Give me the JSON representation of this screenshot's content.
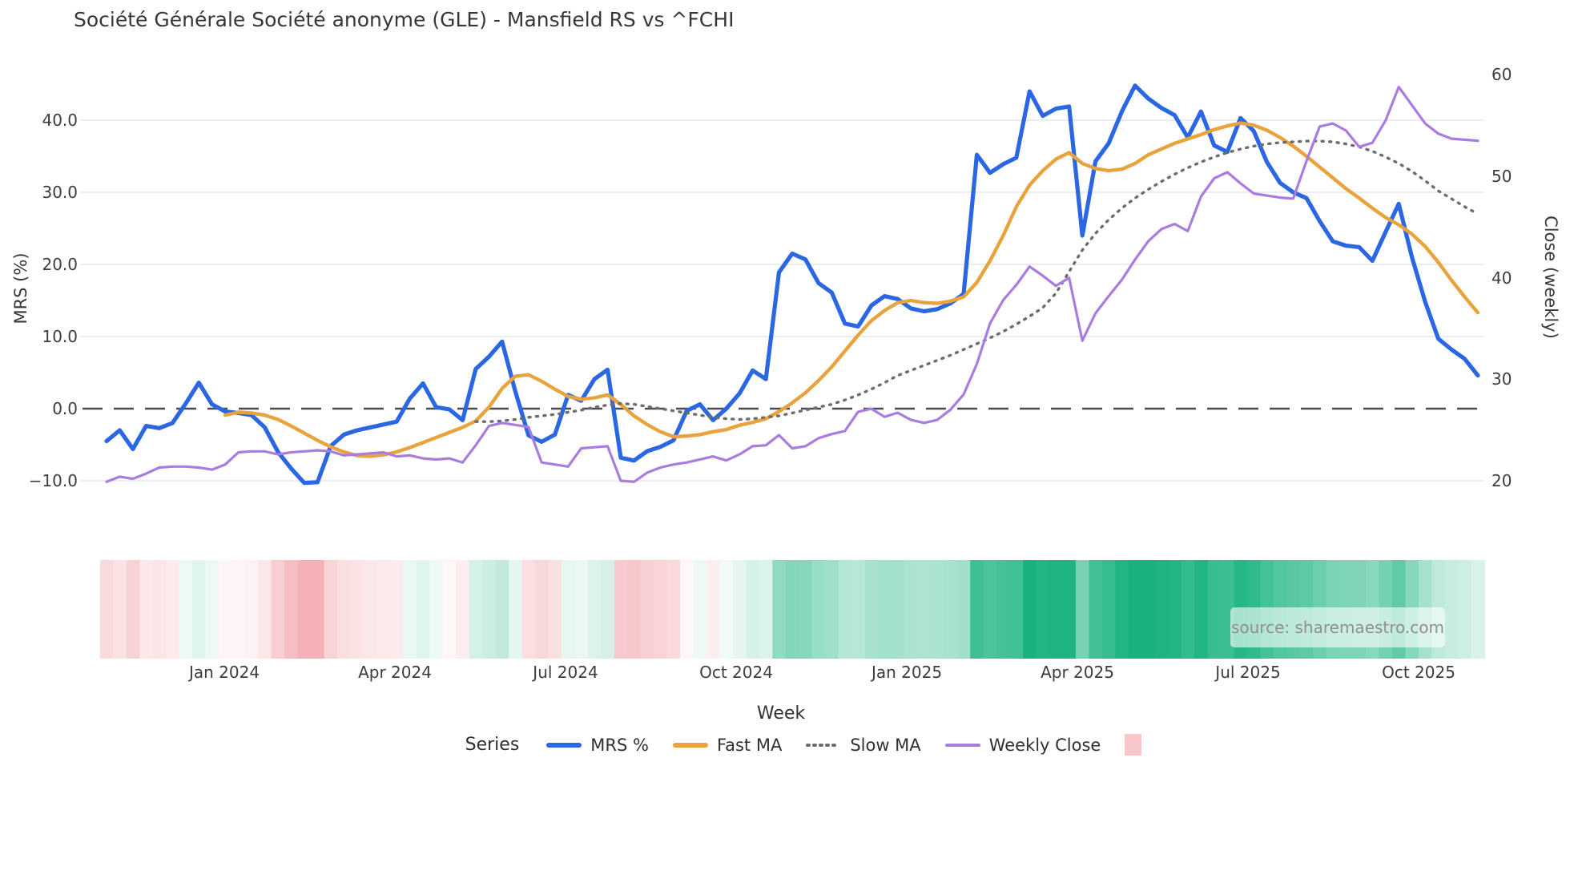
{
  "title": "Société Générale Société anonyme (GLE) - Mansfield RS vs ^FCHI",
  "watermark": {
    "text": "source: sharemaestro.com"
  },
  "legend": {
    "title": "Series",
    "items": [
      {
        "label": "MRS %",
        "swatch": "line",
        "color": "#2b66e3"
      },
      {
        "label": "Fast MA",
        "swatch": "line",
        "color": "#e8a33c"
      },
      {
        "label": "Slow MA",
        "swatch": "dotted-line",
        "color": "#6d6d6d"
      },
      {
        "label": "Weekly Close",
        "swatch": "thin-line",
        "color": "#a97ce0"
      },
      {
        "label": "",
        "swatch": "square",
        "color": "#f9c6ca"
      }
    ]
  },
  "chart_data": {
    "type": "line",
    "title": "Société Générale Société anonyme (GLE) - Mansfield RS vs ^FCHI",
    "xlabel": "Week",
    "ylabel_left": "MRS (%)",
    "ylabel_right": "Close (weekly)",
    "grid": "horizontal-light",
    "zero_line": {
      "value": 0.0,
      "axis": "left",
      "style": "dashed",
      "color": "#4a4a55"
    },
    "left_axis": {
      "tick_labels": [
        "40.0",
        "30.0",
        "20.0",
        "10.0",
        "0.0",
        "−10.0"
      ],
      "tick_values": [
        40,
        30,
        20,
        10,
        0,
        -10
      ],
      "range_hint": [
        -13,
        47
      ]
    },
    "right_axis": {
      "tick_labels": [
        "60",
        "50",
        "40",
        "30",
        "20"
      ],
      "tick_values": [
        60,
        50,
        40,
        30,
        20
      ],
      "range_hint": [
        16,
        61
      ]
    },
    "x_tick_labels": [
      "Jan 2024",
      "Apr 2024",
      "Jul 2024",
      "Oct 2024",
      "Jan 2025",
      "Apr 2025",
      "Jul 2025",
      "Oct 2025"
    ],
    "x_unit": "weekly points, ~Nov 2023 to ~Nov 2025",
    "n_points": 105,
    "heat_band": {
      "source_series": "MRS %",
      "negative_color": "#f4b2b8",
      "positive_color": "#17b27e",
      "description": "weekly strip below chart colored red for negative MRS, green for positive"
    },
    "series": [
      {
        "name": "MRS %",
        "axis": "left",
        "style": "solid",
        "color": "#2b66e3",
        "width": 5.2,
        "values": [
          -4.5,
          -3.0,
          -5.6,
          -2.4,
          -2.7,
          -2.0,
          0.7,
          3.6,
          0.6,
          -0.4,
          -0.6,
          -0.9,
          -2.6,
          -6.0,
          -8.3,
          -10.3,
          -10.2,
          -5.2,
          -3.6,
          -3.0,
          -2.6,
          -2.2,
          -1.8,
          1.4,
          3.5,
          0.2,
          -0.1,
          -1.6,
          5.5,
          7.2,
          9.3,
          2.4,
          -3.7,
          -4.6,
          -3.6,
          1.9,
          1.1,
          4.1,
          5.4,
          -6.8,
          -7.2,
          -5.9,
          -5.3,
          -4.4,
          -0.3,
          0.6,
          -1.6,
          0.0,
          2.1,
          5.3,
          4.1,
          18.9,
          21.5,
          20.7,
          17.4,
          16.1,
          11.8,
          11.4,
          14.3,
          15.6,
          15.2,
          13.9,
          13.5,
          13.8,
          14.6,
          15.9,
          35.2,
          32.7,
          33.9,
          34.8,
          44.0,
          40.6,
          41.6,
          41.9,
          24.0,
          34.3,
          36.8,
          41.2,
          44.8,
          43.0,
          41.7,
          40.7,
          37.6,
          41.2,
          36.5,
          35.6,
          40.3,
          38.5,
          34.2,
          31.3,
          30.0,
          29.2,
          26.0,
          23.2,
          22.6,
          22.4,
          20.5,
          24.5,
          28.4,
          21.0,
          14.8,
          9.7,
          8.2,
          6.9,
          4.6
        ]
      },
      {
        "name": "Fast MA",
        "axis": "left",
        "style": "solid",
        "color": "#e8a33c",
        "width": 4.4,
        "values": [
          null,
          null,
          null,
          null,
          null,
          null,
          null,
          null,
          null,
          -0.9,
          -0.5,
          -0.6,
          -0.9,
          -1.5,
          -2.4,
          -3.4,
          -4.4,
          -5.3,
          -6.0,
          -6.5,
          -6.6,
          -6.4,
          -6.0,
          -5.4,
          -4.7,
          -4.0,
          -3.3,
          -2.6,
          -1.7,
          0.2,
          2.8,
          4.5,
          4.7,
          3.8,
          2.7,
          1.7,
          1.3,
          1.5,
          1.9,
          0.6,
          -1.0,
          -2.2,
          -3.2,
          -3.9,
          -3.8,
          -3.6,
          -3.2,
          -2.9,
          -2.3,
          -1.9,
          -1.4,
          -0.4,
          0.8,
          2.2,
          3.9,
          5.8,
          8.0,
          10.2,
          12.2,
          13.6,
          14.7,
          15.0,
          14.7,
          14.6,
          14.9,
          15.5,
          17.5,
          20.5,
          24.0,
          28.0,
          31.0,
          33.0,
          34.6,
          35.5,
          34.0,
          33.3,
          33.0,
          33.2,
          34.0,
          35.2,
          36.0,
          36.8,
          37.4,
          38.0,
          38.7,
          39.2,
          39.6,
          39.3,
          38.6,
          37.6,
          36.4,
          35.0,
          33.5,
          32.0,
          30.5,
          29.2,
          27.8,
          26.5,
          25.5,
          24.2,
          22.5,
          20.3,
          17.8,
          15.5,
          13.3
        ]
      },
      {
        "name": "Slow MA",
        "axis": "left",
        "style": "dotted",
        "color": "#6d6d6d",
        "width": 3.4,
        "values": [
          null,
          null,
          null,
          null,
          null,
          null,
          null,
          null,
          null,
          null,
          null,
          null,
          null,
          null,
          null,
          null,
          null,
          null,
          null,
          null,
          null,
          null,
          null,
          null,
          null,
          null,
          null,
          null,
          -1.8,
          -1.8,
          -1.7,
          -1.5,
          -1.2,
          -1.0,
          -0.8,
          -0.5,
          -0.2,
          0.2,
          0.5,
          0.7,
          0.6,
          0.3,
          0.0,
          -0.3,
          -0.6,
          -0.9,
          -1.2,
          -1.4,
          -1.5,
          -1.4,
          -1.2,
          -1.0,
          -0.6,
          -0.2,
          0.2,
          0.6,
          1.2,
          1.9,
          2.7,
          3.6,
          4.6,
          5.3,
          6.0,
          6.7,
          7.4,
          8.2,
          9.0,
          9.8,
          10.7,
          11.7,
          12.8,
          14.0,
          16.0,
          19.0,
          22.0,
          24.3,
          26.2,
          27.8,
          29.2,
          30.4,
          31.5,
          32.5,
          33.4,
          34.2,
          34.9,
          35.5,
          36.0,
          36.4,
          36.7,
          36.9,
          37.0,
          37.1,
          37.1,
          37.0,
          36.7,
          36.3,
          35.7,
          34.9,
          34.0,
          32.9,
          31.6,
          30.2,
          29.1,
          28.0,
          27.0
        ]
      },
      {
        "name": "Weekly Close",
        "axis": "right",
        "style": "solid",
        "color": "#a97ce0",
        "width": 3.2,
        "values": [
          19.9,
          20.4,
          20.2,
          20.7,
          21.3,
          21.4,
          21.4,
          21.3,
          21.1,
          21.6,
          22.8,
          22.9,
          22.9,
          22.6,
          22.8,
          22.9,
          23.0,
          22.9,
          22.5,
          22.6,
          22.7,
          22.8,
          22.4,
          22.5,
          22.2,
          22.1,
          22.2,
          21.8,
          23.5,
          25.4,
          25.7,
          25.5,
          25.3,
          21.8,
          21.6,
          21.4,
          23.2,
          23.3,
          23.4,
          20.0,
          19.9,
          20.8,
          21.3,
          21.6,
          21.8,
          22.1,
          22.4,
          22.0,
          22.6,
          23.4,
          23.5,
          24.5,
          23.2,
          23.4,
          24.2,
          24.6,
          24.9,
          26.8,
          27.1,
          26.3,
          26.7,
          26.0,
          25.7,
          26.0,
          27.0,
          28.5,
          31.5,
          35.5,
          37.8,
          39.3,
          41.1,
          40.2,
          39.2,
          40.0,
          33.8,
          36.5,
          38.2,
          39.8,
          41.8,
          43.6,
          44.8,
          45.3,
          44.6,
          48.0,
          49.8,
          50.4,
          49.3,
          48.3,
          48.1,
          47.9,
          47.8,
          51.5,
          54.9,
          55.2,
          54.5,
          52.9,
          53.3,
          55.5,
          58.8,
          57.0,
          55.2,
          54.2,
          53.7,
          53.6,
          53.5
        ]
      }
    ]
  }
}
